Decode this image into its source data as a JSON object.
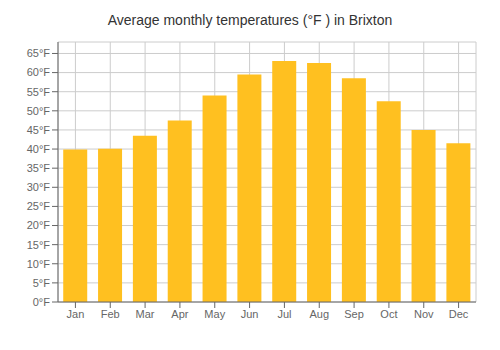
{
  "chart_data": {
    "type": "bar",
    "title": "Average monthly temperatures (°F ) in Brixton",
    "categories": [
      "Jan",
      "Feb",
      "Mar",
      "Apr",
      "May",
      "Jun",
      "Jul",
      "Aug",
      "Sep",
      "Oct",
      "Nov",
      "Dec"
    ],
    "values": [
      39.9,
      40.1,
      43.5,
      47.5,
      54.0,
      59.5,
      63.0,
      62.5,
      58.5,
      52.5,
      45.0,
      41.5
    ],
    "color": "#FFC020",
    "ylim": [
      0,
      68
    ],
    "yticks": [
      {
        "value": 0,
        "label": "0°F"
      },
      {
        "value": 5,
        "label": "5°F"
      },
      {
        "value": 10,
        "label": "10°F"
      },
      {
        "value": 15,
        "label": "15°F"
      },
      {
        "value": 20,
        "label": "20°F"
      },
      {
        "value": 25,
        "label": "25°F"
      },
      {
        "value": 30,
        "label": "30°F"
      },
      {
        "value": 35,
        "label": "35°F"
      },
      {
        "value": 40,
        "label": "40°F"
      },
      {
        "value": 45,
        "label": "45°F"
      },
      {
        "value": 50,
        "label": "50°F"
      },
      {
        "value": 55,
        "label": "55°F"
      },
      {
        "value": 60,
        "label": "60°F"
      },
      {
        "value": 65,
        "label": "65°F"
      }
    ],
    "grid": true
  }
}
